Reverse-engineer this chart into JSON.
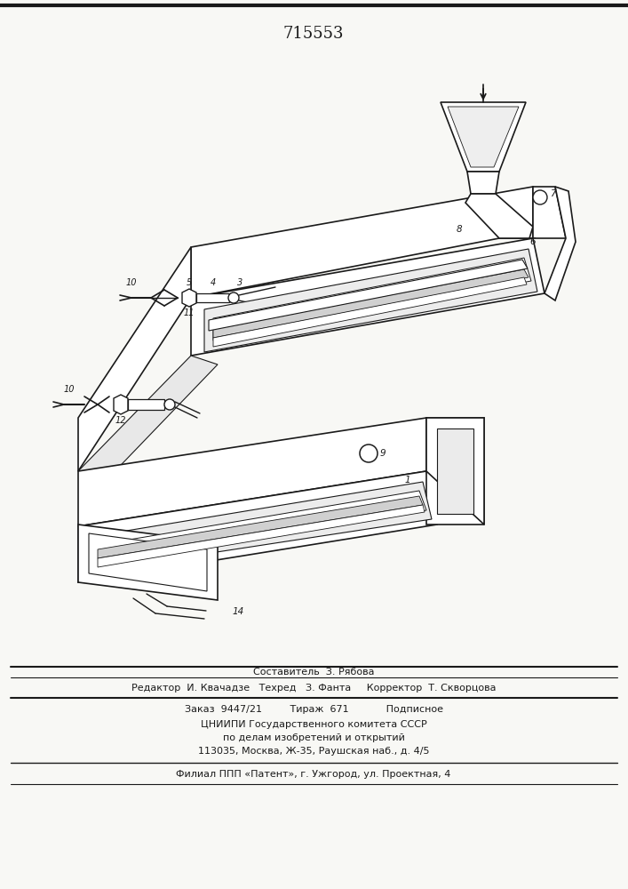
{
  "bg_color": "#f8f8f5",
  "line_color": "#1a1a1a",
  "lw": 1.2,
  "title": "715553",
  "footer": {
    "l1": "Составитель  З. Рябова",
    "l2": "Редактор  И. Квачадзе   Техред   З. Фанта     Корректор  Т. Скворцова",
    "l3": "Заказ  9447/21         Тираж  671            Подписное",
    "l4": "ЦНИИПИ Государственного комитета СССР",
    "l5": "по делам изобретений и открытий",
    "l6": "113035, Москва, Ж-35, Раушская наб., д. 4/5",
    "l7": "Филиал ППП «Патент», г. Ужгород, ул. Проектная, 4"
  }
}
